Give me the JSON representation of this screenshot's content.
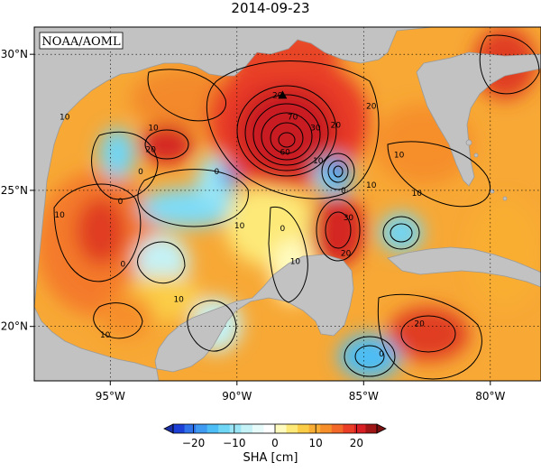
{
  "title": "2014-09-23",
  "credit": "NOAA/AOML",
  "map": {
    "lon_range": [
      -98,
      -78
    ],
    "lat_range": [
      18,
      31
    ],
    "lon_ticks": [
      {
        "value": -95,
        "label": "95°W"
      },
      {
        "value": -90,
        "label": "90°W"
      },
      {
        "value": -85,
        "label": "85°W"
      },
      {
        "value": -80,
        "label": "80°W"
      }
    ],
    "lat_ticks": [
      {
        "value": 20,
        "label": "20°N"
      },
      {
        "value": 25,
        "label": "25°N"
      },
      {
        "value": 30,
        "label": "30°N"
      }
    ],
    "gridlines": true,
    "land_color": "#c2c2c2",
    "marker": {
      "lon": -88.2,
      "lat": 28.5,
      "symbol": "triangle"
    },
    "contour_labels": [
      {
        "text": "10",
        "lon": -96.8,
        "lat": 27.6
      },
      {
        "text": "10",
        "lon": -93.3,
        "lat": 27.2
      },
      {
        "text": "20",
        "lon": -93.4,
        "lat": 26.4
      },
      {
        "text": "0",
        "lon": -93.8,
        "lat": 25.6
      },
      {
        "text": "0",
        "lon": -94.6,
        "lat": 24.5
      },
      {
        "text": "10",
        "lon": -97.0,
        "lat": 24.0
      },
      {
        "text": "0",
        "lon": -90.8,
        "lat": 25.6
      },
      {
        "text": "10",
        "lon": -89.9,
        "lat": 23.6
      },
      {
        "text": "0",
        "lon": -94.5,
        "lat": 22.2
      },
      {
        "text": "10",
        "lon": -92.3,
        "lat": 20.9
      },
      {
        "text": "10",
        "lon": -95.2,
        "lat": 19.6
      },
      {
        "text": "0",
        "lon": -88.2,
        "lat": 23.5
      },
      {
        "text": "10",
        "lon": -87.7,
        "lat": 22.3
      },
      {
        "text": "20",
        "lon": -88.4,
        "lat": 28.4
      },
      {
        "text": "70",
        "lon": -87.8,
        "lat": 27.6
      },
      {
        "text": "60",
        "lon": -88.1,
        "lat": 26.3
      },
      {
        "text": "30",
        "lon": -86.9,
        "lat": 27.2
      },
      {
        "text": "20",
        "lon": -86.1,
        "lat": 27.3
      },
      {
        "text": "10",
        "lon": -86.8,
        "lat": 26.0
      },
      {
        "text": "0",
        "lon": -85.8,
        "lat": 24.9
      },
      {
        "text": "10",
        "lon": -84.7,
        "lat": 25.1
      },
      {
        "text": "30",
        "lon": -85.6,
        "lat": 23.9
      },
      {
        "text": "20",
        "lon": -85.7,
        "lat": 22.6
      },
      {
        "text": "10",
        "lon": -83.6,
        "lat": 26.2
      },
      {
        "text": "20",
        "lon": -84.7,
        "lat": 28.0
      },
      {
        "text": "10",
        "lon": -82.9,
        "lat": 24.8
      },
      {
        "text": "20",
        "lon": -82.8,
        "lat": 20.0
      },
      {
        "text": "0",
        "lon": -84.3,
        "lat": 18.9
      }
    ]
  },
  "colorbar": {
    "label": "SHA [cm]",
    "min": -25,
    "max": 25,
    "ticks": [
      {
        "value": -20,
        "label": "−20"
      },
      {
        "value": -10,
        "label": "−10"
      },
      {
        "value": 0,
        "label": "0"
      },
      {
        "value": 10,
        "label": "10"
      },
      {
        "value": 20,
        "label": "20"
      }
    ],
    "colors": [
      "#1c3fd6",
      "#2f72ea",
      "#3f9af2",
      "#4cbdf5",
      "#6fd6f6",
      "#9ae6f6",
      "#c4f2f6",
      "#e8fbfb",
      "#ffffff",
      "#fffbbf",
      "#fde978",
      "#fbcd46",
      "#f9ae33",
      "#f68f2a",
      "#f16828",
      "#ea3e26",
      "#d81f24",
      "#a01616"
    ]
  }
}
